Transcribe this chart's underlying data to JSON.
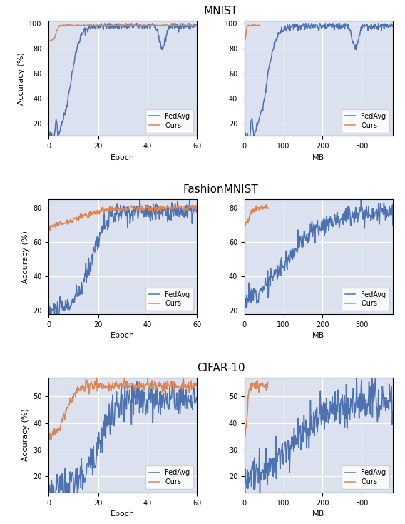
{
  "titles": [
    "MNIST",
    "FashionMNIST",
    "CIFAR-10"
  ],
  "col_xlabels": [
    "Epoch",
    "MB"
  ],
  "ylabel": "Accuracy (%)",
  "background_color": "#dce1f0",
  "fedavg_color": "#4c72b0",
  "ours_color": "#dd8452",
  "legend_labels": [
    "FedAvg",
    "Ours"
  ],
  "mnist": {
    "epoch": {
      "xlim": [
        0,
        60
      ],
      "ylim": [
        10,
        102
      ],
      "yticks": [
        20,
        40,
        60,
        80,
        100
      ],
      "xticks": [
        0,
        20,
        40,
        60
      ]
    },
    "mb": {
      "xlim": [
        0,
        380
      ],
      "ylim": [
        10,
        102
      ],
      "yticks": [
        20,
        40,
        60,
        80,
        100
      ],
      "xticks": [
        0,
        100,
        200,
        300
      ]
    }
  },
  "fashion": {
    "epoch": {
      "xlim": [
        0,
        60
      ],
      "ylim": [
        18,
        85
      ],
      "yticks": [
        20,
        40,
        60,
        80
      ],
      "xticks": [
        0,
        20,
        40,
        60
      ]
    },
    "mb": {
      "xlim": [
        0,
        380
      ],
      "ylim": [
        18,
        85
      ],
      "yticks": [
        20,
        40,
        60,
        80
      ],
      "xticks": [
        0,
        100,
        200,
        300
      ]
    }
  },
  "cifar": {
    "epoch": {
      "xlim": [
        0,
        60
      ],
      "ylim": [
        14,
        57
      ],
      "yticks": [
        20,
        30,
        40,
        50
      ],
      "xticks": [
        0,
        20,
        40,
        60
      ]
    },
    "mb": {
      "xlim": [
        0,
        380
      ],
      "ylim": [
        14,
        57
      ],
      "yticks": [
        20,
        30,
        40,
        50
      ],
      "xticks": [
        0,
        100,
        200,
        300
      ]
    }
  }
}
